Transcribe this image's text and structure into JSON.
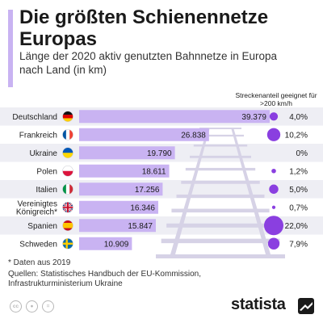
{
  "title": "Die größten Schienennetze Europas",
  "subtitle": "Länge der 2020 aktiv genutzten Bahnnetze in Europa nach Land (in km)",
  "share_header": "Streckenanteil geeignet für >200 km/h",
  "footnote": "* Daten aus 2019",
  "source": "Quellen: Statistisches Handbuch der EU-Kommission, Infrastrukturministerium Ukraine",
  "brand": "statista",
  "colors": {
    "bar": "#c9b3f2",
    "bar_label": "#ffffff",
    "bubble": "#8a3fe0",
    "row_stripe": "#eeeef4",
    "track": "#d6d2e6"
  },
  "chart_data": {
    "type": "bar",
    "orientation": "horizontal",
    "categories": [
      "Deutschland",
      "Frankreich",
      "Ukraine",
      "Polen",
      "Italien",
      "Vereinigtes Königreich*",
      "Spanien",
      "Schweden"
    ],
    "category_lines": [
      [
        "Deutschland"
      ],
      [
        "Frankreich"
      ],
      [
        "Ukraine"
      ],
      [
        "Polen"
      ],
      [
        "Italien"
      ],
      [
        "Vereinigtes",
        "Königreich*"
      ],
      [
        "Spanien"
      ],
      [
        "Schweden"
      ]
    ],
    "flags": [
      "de",
      "fr",
      "ua",
      "pl",
      "it",
      "gb",
      "es",
      "se"
    ],
    "series": [
      {
        "values": [
          39379,
          26838,
          19790,
          18611,
          17256,
          16346,
          15847,
          10909
        ],
        "labels": [
          "39.379",
          "26.838",
          "19.790",
          "18.611",
          "17.256",
          "16.346",
          "15.847",
          "10.909"
        ]
      },
      {
        "name": "Streckenanteil geeignet für >200 km/h",
        "values": [
          4.0,
          10.2,
          0,
          1.2,
          5.0,
          0.7,
          22.0,
          7.9
        ],
        "labels": [
          "4,0%",
          "10,2%",
          "0%",
          "1,2%",
          "5,0%",
          "0,7%",
          "22,0%",
          "7,9%"
        ]
      }
    ],
    "xlim": [
      0,
      39379
    ],
    "unit": "km"
  }
}
